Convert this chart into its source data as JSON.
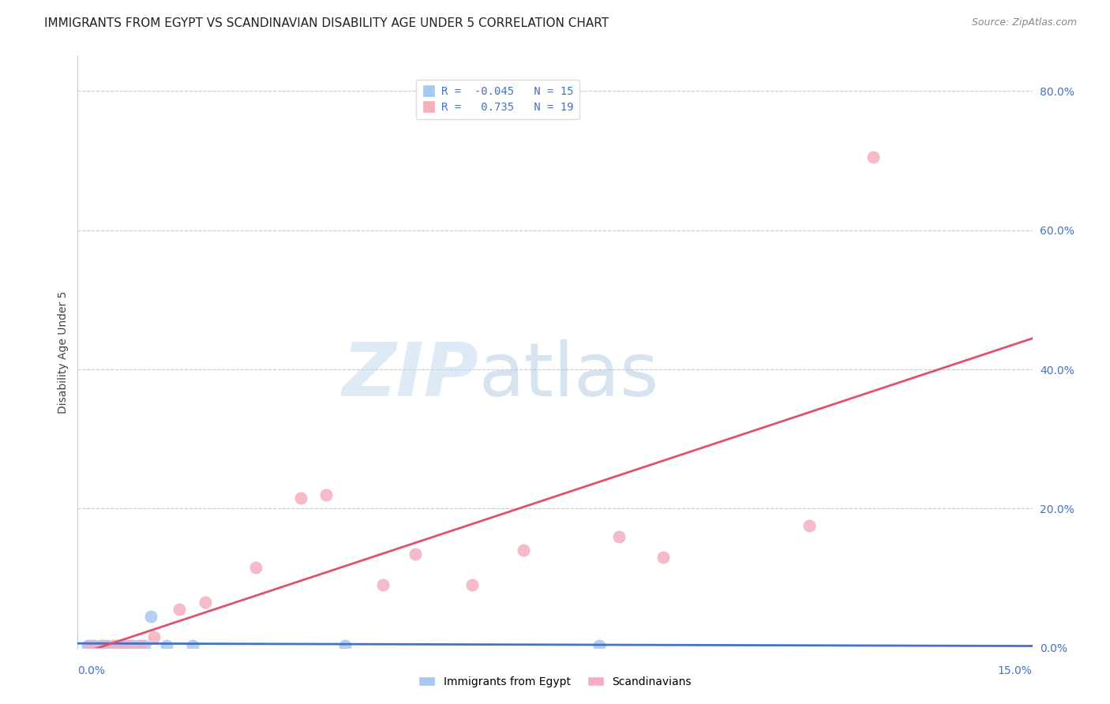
{
  "title": "IMMIGRANTS FROM EGYPT VS SCANDINAVIAN DISABILITY AGE UNDER 5 CORRELATION CHART",
  "source": "Source: ZipAtlas.com",
  "ylabel": "Disability Age Under 5",
  "xlim": [
    0.0,
    15.0
  ],
  "ylim": [
    0.0,
    85.0
  ],
  "yticks": [
    0.0,
    20.0,
    40.0,
    60.0,
    80.0
  ],
  "background_color": "#ffffff",
  "egypt_color": "#a8c8f0",
  "egypt_edge_color": "#a8c8f0",
  "egypt_line_color": "#4472c4",
  "scand_color": "#f4b0c0",
  "scand_edge_color": "#f4b0c0",
  "scand_line_color": "#e05070",
  "egypt_R": -0.045,
  "egypt_N": 15,
  "scand_R": 0.735,
  "scand_N": 19,
  "egypt_x": [
    0.15,
    0.25,
    0.35,
    0.45,
    0.55,
    0.65,
    0.75,
    0.85,
    0.95,
    1.05,
    1.15,
    1.4,
    1.8,
    4.2,
    8.2
  ],
  "egypt_y": [
    0.3,
    0.3,
    0.3,
    0.3,
    0.3,
    0.3,
    0.3,
    0.3,
    0.3,
    0.3,
    4.5,
    0.3,
    0.3,
    0.3,
    0.3
  ],
  "scand_x": [
    0.2,
    0.4,
    0.6,
    0.8,
    1.0,
    1.2,
    1.6,
    2.0,
    2.8,
    3.5,
    3.9,
    4.8,
    5.3,
    6.2,
    7.0,
    8.5,
    9.2,
    11.5,
    12.5
  ],
  "scand_y": [
    0.3,
    0.3,
    0.3,
    0.3,
    0.3,
    1.5,
    5.5,
    6.5,
    11.5,
    21.5,
    22.0,
    9.0,
    13.5,
    9.0,
    14.0,
    16.0,
    13.0,
    17.5,
    70.5
  ],
  "legend_labels": [
    "Immigrants from Egypt",
    "Scandinavians"
  ],
  "title_fontsize": 11,
  "axis_label_fontsize": 10,
  "tick_fontsize": 10,
  "source_fontsize": 9,
  "marker_size": 120
}
